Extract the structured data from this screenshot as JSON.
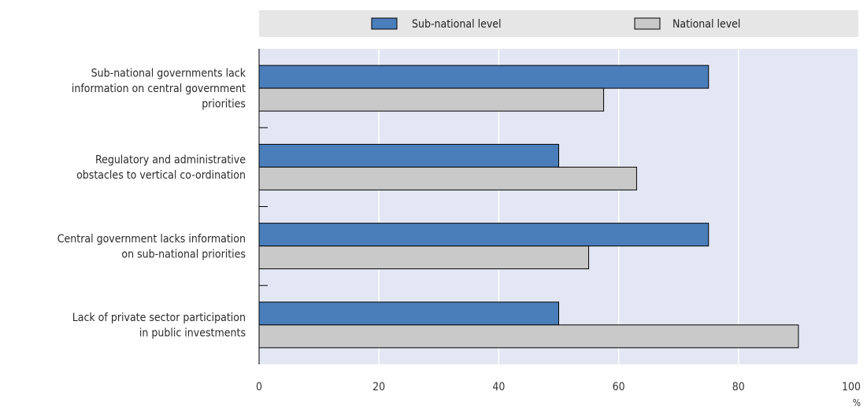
{
  "chart_data": {
    "type": "bar",
    "orientation": "horizontal",
    "categories": [
      [
        "Sub-national governments lack",
        "information on central government",
        "priorities"
      ],
      [
        "Regulatory and administrative",
        "obstacles to vertical co-ordination"
      ],
      [
        "Central government lacks information",
        "on sub-national priorities"
      ],
      [
        "Lack of private sector participation",
        "in public investments"
      ]
    ],
    "series": [
      {
        "name": "Sub-national level",
        "values": [
          75,
          50,
          75,
          50
        ],
        "color": "#4a7ebb"
      },
      {
        "name": "National level",
        "values": [
          57.5,
          63,
          55,
          90
        ],
        "color": "#c9c9c9"
      }
    ],
    "xlim": [
      0,
      100
    ],
    "xticks": [
      0,
      20,
      40,
      60,
      80,
      100
    ],
    "unit": "%",
    "legend_position": "top",
    "grid": true,
    "bar_edge_color": "#000000"
  }
}
